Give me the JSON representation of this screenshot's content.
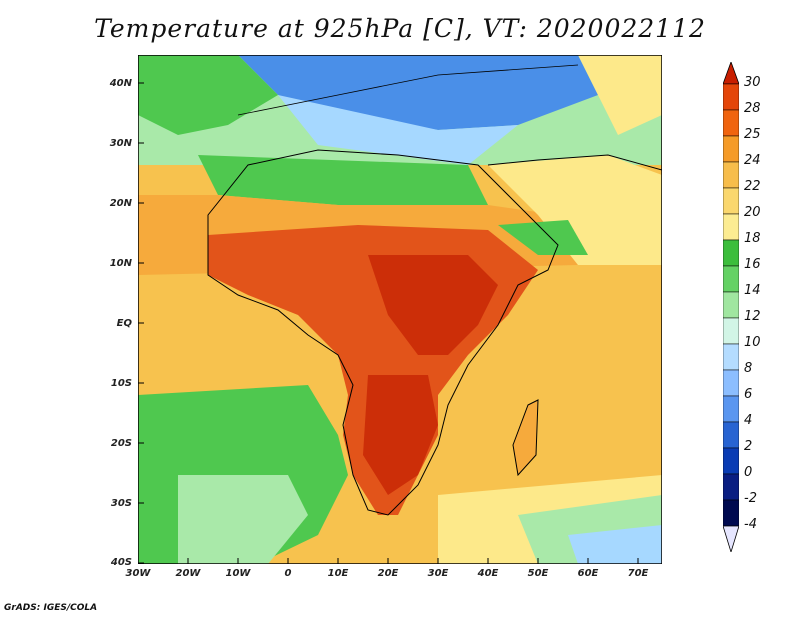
{
  "title": "Temperature at 925hPa [C], VT: 2020022112",
  "credit": "GrADS: IGES/COLA",
  "y_ticks": [
    "40N",
    "30N",
    "20N",
    "10N",
    "EQ",
    "10S",
    "20S",
    "30S",
    "40S"
  ],
  "x_ticks": [
    "30W",
    "20W",
    "10W",
    "0",
    "10E",
    "20E",
    "30E",
    "40E",
    "50E",
    "60E",
    "70E"
  ],
  "colorbar": {
    "labels": [
      "30",
      "28",
      "25",
      "24",
      "22",
      "20",
      "18",
      "16",
      "14",
      "12",
      "10",
      "8",
      "6",
      "4",
      "2",
      "0",
      "-2",
      "-4"
    ],
    "colors": [
      "#c81e00",
      "#e4460a",
      "#f0640f",
      "#f59b28",
      "#f7bd4b",
      "#fad76e",
      "#fcec92",
      "#fff5b0",
      "#3cbe3c",
      "#64d264",
      "#a0e6a0",
      "#d2f5e6",
      "#b4dcff",
      "#8cbeff",
      "#5a96f0",
      "#2864d2",
      "#0a3cb4",
      "#0a1e82",
      "#000a50"
    ]
  },
  "map": {
    "lon_range": [
      "30W",
      "75E"
    ],
    "lat_range": [
      "40S",
      "45N"
    ],
    "colors": {
      "cold_sea": "#4a8fe8",
      "cool_sea": "#a6d8ff",
      "mild": "#4fc84f",
      "pale_green": "#a9e9a9",
      "yellow": "#fde98a",
      "orange": "#f6aa3c",
      "hot": "#e2541a",
      "very_hot": "#cc2e08"
    }
  }
}
